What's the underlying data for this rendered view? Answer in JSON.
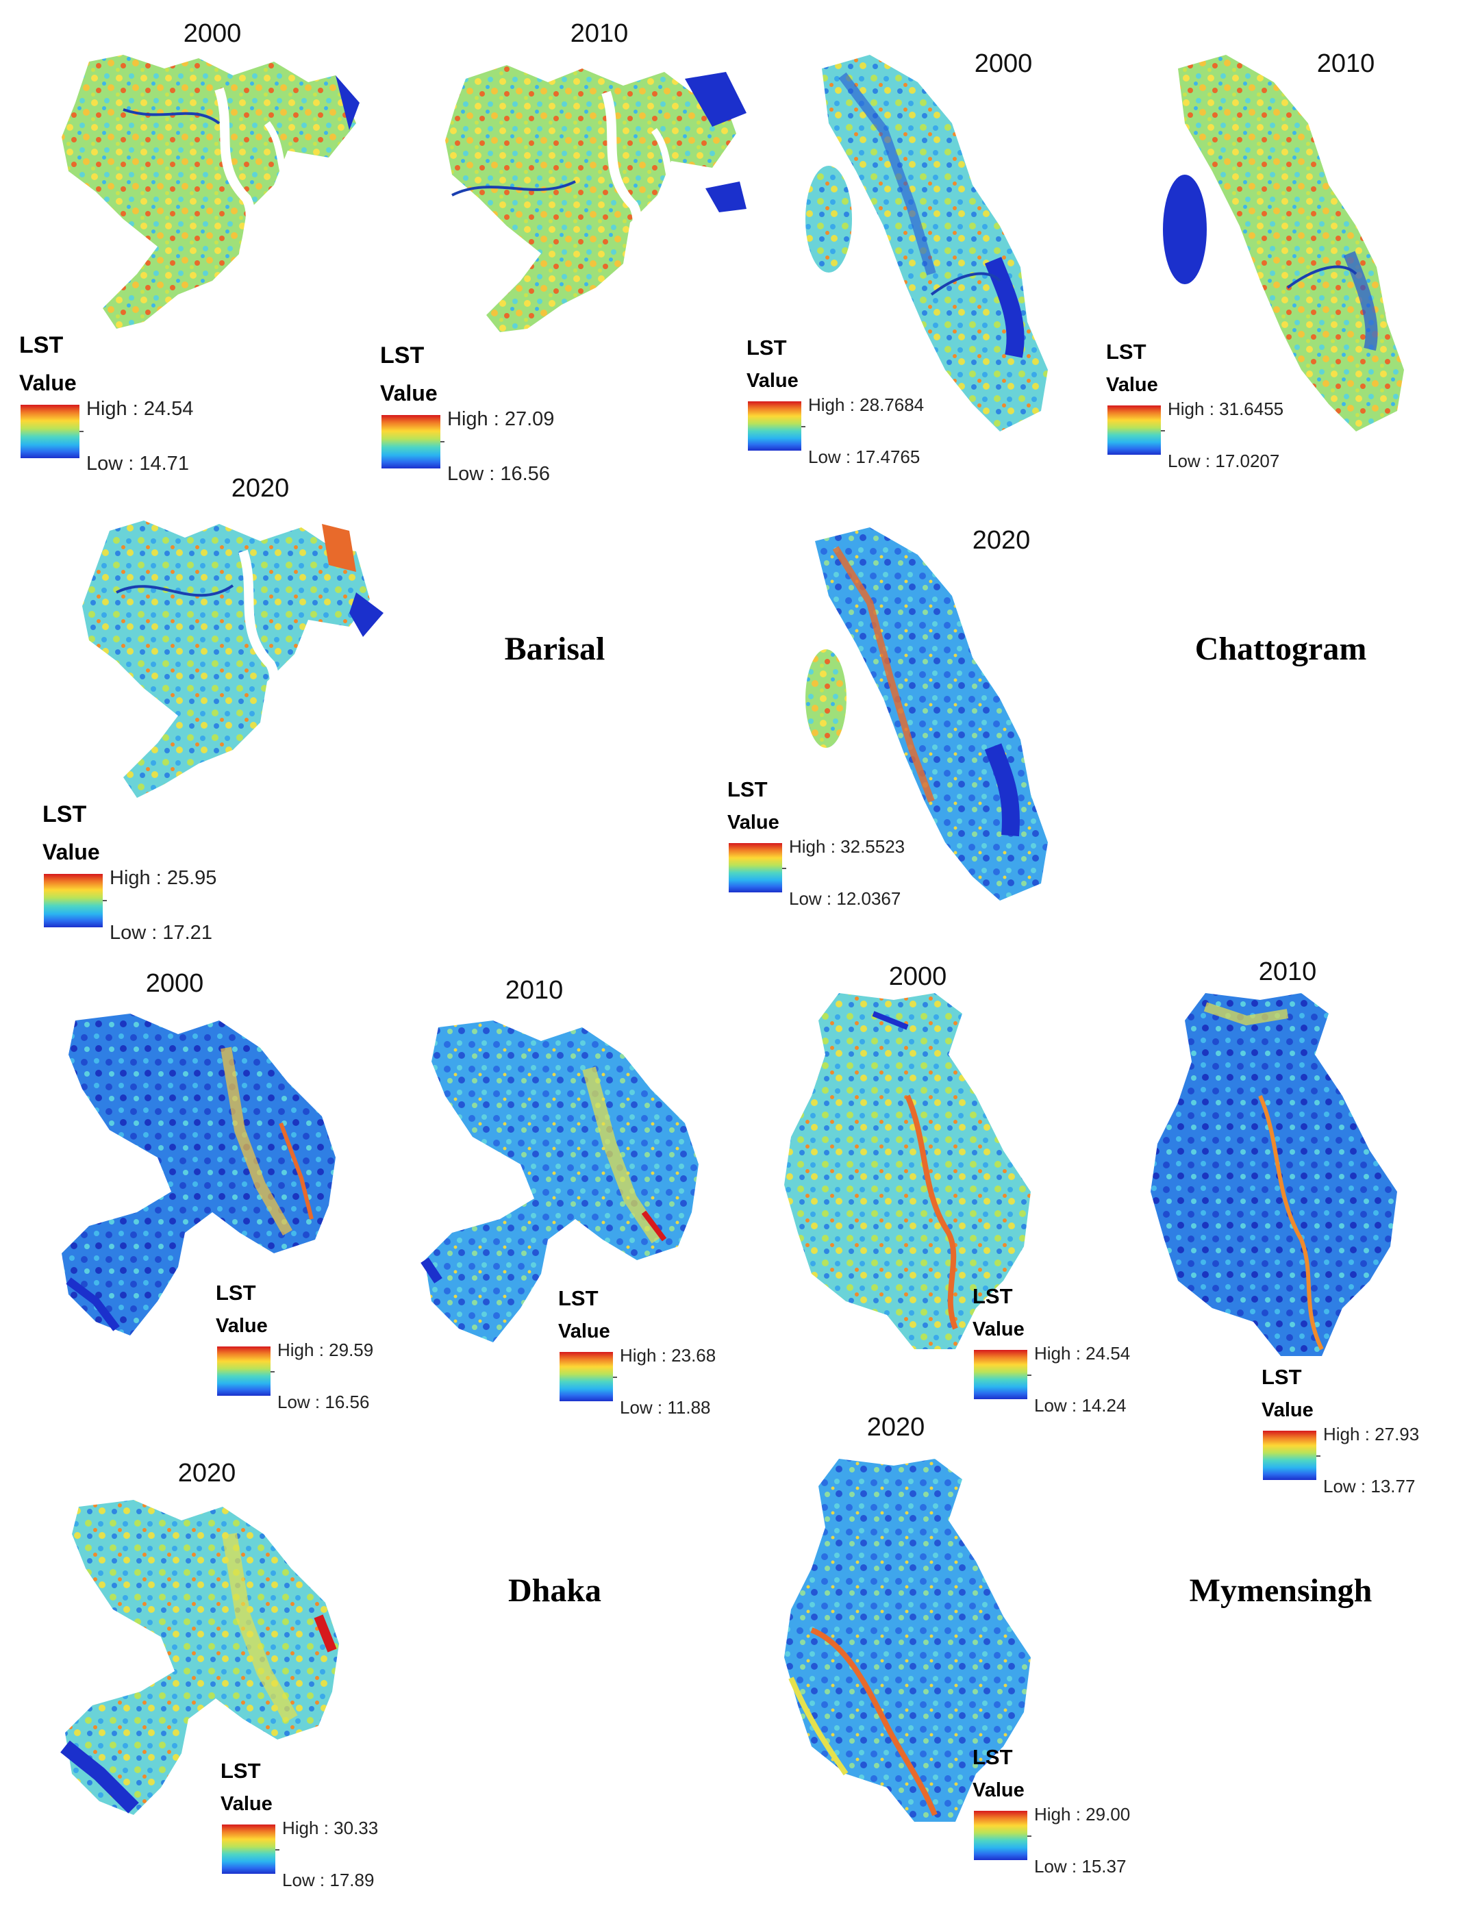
{
  "panels": [
    {
      "id": "barisal-2000",
      "year": "2000",
      "legend": {
        "title": "LST",
        "subtitle": "Value",
        "high": "High : 24.54",
        "low": "Low : 14.71"
      }
    },
    {
      "id": "barisal-2010",
      "year": "2010",
      "legend": {
        "title": "LST",
        "subtitle": "Value",
        "high": "High : 27.09",
        "low": "Low : 16.56"
      }
    },
    {
      "id": "barisal-2020",
      "year": "2020",
      "legend": {
        "title": "LST",
        "subtitle": "Value",
        "high": "High : 25.95",
        "low": "Low : 17.21"
      }
    },
    {
      "id": "chattogram-2000",
      "year": "2000",
      "legend": {
        "title": "LST",
        "subtitle": "Value",
        "high": "High : 28.7684",
        "low": "Low : 17.4765"
      }
    },
    {
      "id": "chattogram-2010",
      "year": "2010",
      "legend": {
        "title": "LST",
        "subtitle": "Value",
        "high": "High : 31.6455",
        "low": "Low : 17.0207"
      }
    },
    {
      "id": "chattogram-2020",
      "year": "2020",
      "legend": {
        "title": "LST",
        "subtitle": "Value",
        "high": "High : 32.5523",
        "low": "Low : 12.0367"
      }
    },
    {
      "id": "dhaka-2000",
      "year": "2000",
      "legend": {
        "title": "LST",
        "subtitle": "Value",
        "high": "High : 29.59",
        "low": "Low : 16.56"
      }
    },
    {
      "id": "dhaka-2010",
      "year": "2010",
      "legend": {
        "title": "LST",
        "subtitle": "Value",
        "high": "High : 23.68",
        "low": "Low : 11.88"
      }
    },
    {
      "id": "dhaka-2020",
      "year": "2020",
      "legend": {
        "title": "LST",
        "subtitle": "Value",
        "high": "High : 30.33",
        "low": "Low : 17.89"
      }
    },
    {
      "id": "mymensingh-2000",
      "year": "2000",
      "legend": {
        "title": "LST",
        "subtitle": "Value",
        "high": "High : 24.54",
        "low": "Low : 14.24"
      }
    },
    {
      "id": "mymensingh-2010",
      "year": "2010",
      "legend": {
        "title": "LST",
        "subtitle": "Value",
        "high": "High : 27.93",
        "low": "Low : 13.77"
      }
    },
    {
      "id": "mymensingh-2020",
      "year": "2020",
      "legend": {
        "title": "LST",
        "subtitle": "Value",
        "high": "High : 29.00",
        "low": "Low : 15.37"
      }
    }
  ],
  "regions": {
    "barisal": "Barisal",
    "chattogram": "Chattogram",
    "dhaka": "Dhaka",
    "mymensingh": "Mymensingh"
  },
  "colors": {
    "ramp_high": "#d7191c",
    "ramp_mid": "#fdd835",
    "ramp_low": "#1b30cc",
    "river": "#1a3fb0"
  }
}
